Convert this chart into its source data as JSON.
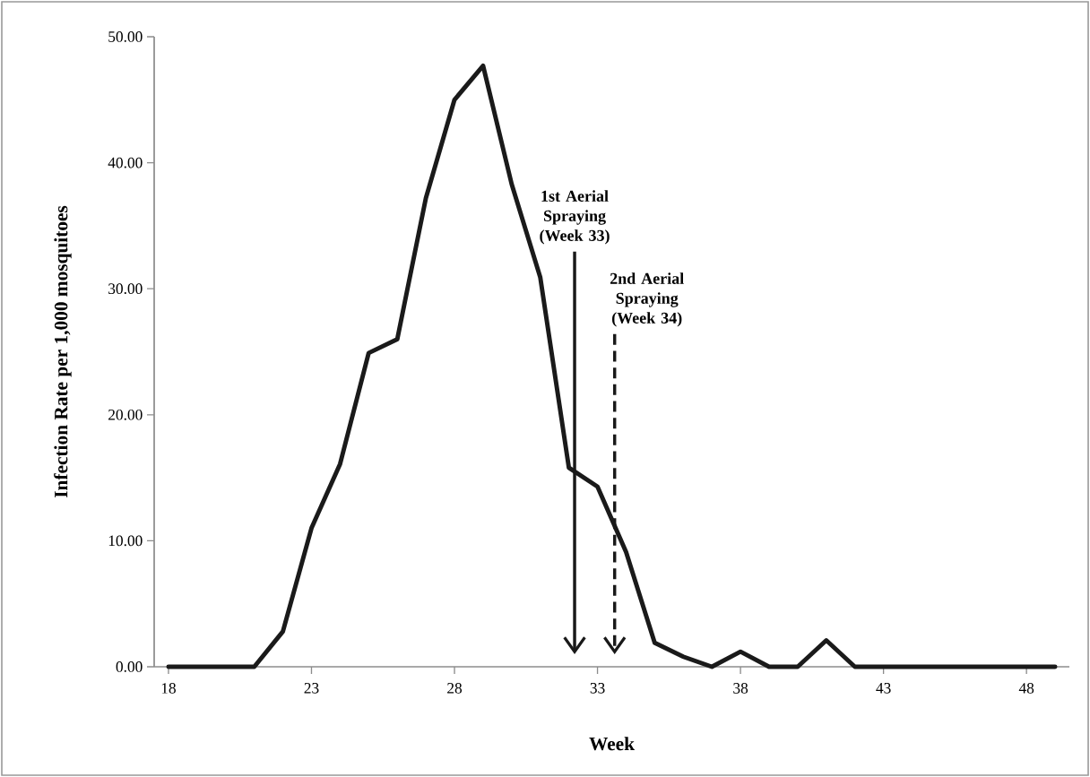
{
  "chart_data": {
    "type": "line",
    "xlabel": "Week",
    "ylabel": "Infection Rate per 1,000 mosquitoes",
    "x": [
      18,
      19,
      20,
      21,
      22,
      23,
      24,
      25,
      26,
      27,
      28,
      29,
      30,
      31,
      32,
      33,
      34,
      35,
      36,
      37,
      38,
      39,
      40,
      41,
      42,
      43,
      44,
      45,
      46,
      47,
      48,
      49
    ],
    "series": [
      {
        "color": "#1a1a1a",
        "values": [
          0,
          0,
          0,
          0,
          2.8,
          11.0,
          16.1,
          24.9,
          26.0,
          37.2,
          45.0,
          47.7,
          38.3,
          30.9,
          15.8,
          14.3,
          9.1,
          1.9,
          0.8,
          0,
          1.2,
          0,
          0,
          2.1,
          0,
          0,
          0,
          0,
          0,
          0,
          0,
          0
        ]
      }
    ],
    "xlim": [
      17.5,
      49.5
    ],
    "xticks": [
      18,
      23,
      28,
      33,
      38,
      43,
      48
    ],
    "ylim": [
      0,
      50
    ],
    "yticks": [
      {
        "value": 0,
        "label": "0.00"
      },
      {
        "value": 10,
        "label": "10.00"
      },
      {
        "value": 20,
        "label": "20.00"
      },
      {
        "value": 30,
        "label": "30.00"
      },
      {
        "value": 40,
        "label": "40.00"
      },
      {
        "value": 50,
        "label": "50.00"
      }
    ],
    "ref_lines": [
      {
        "axis": "x",
        "value": 32.2,
        "label": "1st Aerial Spraying (Week 33)",
        "line_style": "solid"
      },
      {
        "axis": "x",
        "value": 33.6,
        "label": "2nd Aerial Spraying (Week 34)",
        "line_style": "dashed"
      }
    ],
    "marker": "none",
    "grid": false
  }
}
